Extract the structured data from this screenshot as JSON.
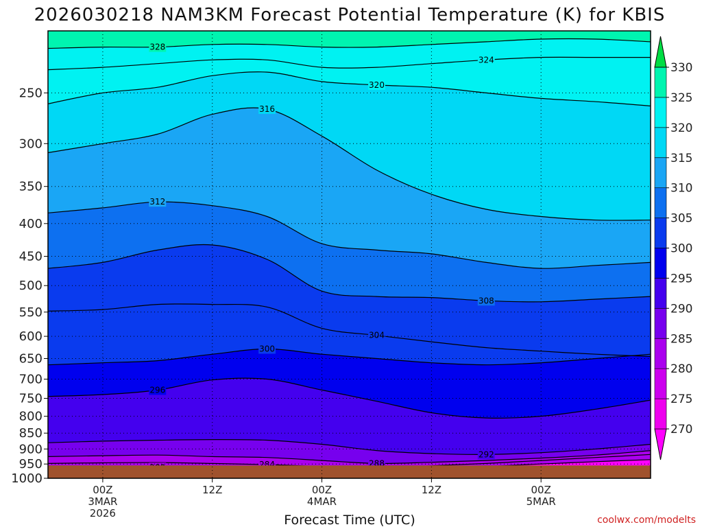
{
  "chart_data": {
    "type": "contour",
    "title": "2026030218 NAM3KM Forecast Potential Temperature (K) for KBIS",
    "xlabel": "Forecast Time (UTC)",
    "ylabel": "",
    "x_unit": "forecast hour",
    "xlim": [
      -6,
      60
    ],
    "y_unit": "hPa",
    "ylim": [
      1000,
      200
    ],
    "y_ticks": [
      250,
      300,
      350,
      400,
      450,
      500,
      550,
      600,
      650,
      700,
      750,
      800,
      850,
      900,
      950,
      1000
    ],
    "y_tick_labels": [
      "250",
      "300",
      "350",
      "400",
      "450",
      "500",
      "550",
      "600",
      "650",
      "700",
      "750",
      "800",
      "850",
      "900",
      "950",
      "1000"
    ],
    "x_ticks": [
      {
        "hour": 0,
        "label": "00Z",
        "line2": "3MAR",
        "line3": "2026"
      },
      {
        "hour": 12,
        "label": "12Z",
        "line2": "",
        "line3": ""
      },
      {
        "hour": 24,
        "label": "00Z",
        "line2": "4MAR",
        "line3": ""
      },
      {
        "hour": 36,
        "label": "12Z",
        "line2": "",
        "line3": ""
      },
      {
        "hour": 48,
        "label": "00Z",
        "line2": "5MAR",
        "line3": ""
      }
    ],
    "colorbar": {
      "levels": [
        265,
        270,
        275,
        280,
        285,
        290,
        295,
        300,
        305,
        310,
        315,
        320,
        325,
        330,
        335
      ],
      "labels": [
        "270",
        "275",
        "280",
        "285",
        "290",
        "295",
        "300",
        "305",
        "310",
        "315",
        "320",
        "325",
        "330"
      ],
      "colors": [
        "#ff00ff",
        "#ee00ee",
        "#cc00ee",
        "#aa00ee",
        "#7700ee",
        "#4400ee",
        "#0000ee",
        "#0a3bee",
        "#0d70f0",
        "#1aa6f5",
        "#00d8f5",
        "#00f2f2",
        "#00f5b0",
        "#00ee55",
        "#00dd44"
      ]
    },
    "contours": [
      {
        "level": 280,
        "label": "280",
        "points": [
          [
            -6,
            960
          ],
          [
            0,
            962
          ],
          [
            6,
            962
          ],
          [
            12,
            960
          ],
          [
            18,
            962
          ],
          [
            24,
            962
          ],
          [
            30,
            963
          ],
          [
            36,
            961
          ],
          [
            42,
            958
          ],
          [
            48,
            950
          ],
          [
            54,
            942
          ],
          [
            60,
            935
          ]
        ]
      },
      {
        "level": 284,
        "label": "284",
        "points": [
          [
            -6,
            948
          ],
          [
            0,
            946
          ],
          [
            6,
            945
          ],
          [
            12,
            948
          ],
          [
            18,
            952
          ],
          [
            24,
            958
          ],
          [
            30,
            960
          ],
          [
            36,
            956
          ],
          [
            42,
            948
          ],
          [
            48,
            938
          ],
          [
            54,
            928
          ],
          [
            60,
            918
          ]
        ]
      },
      {
        "level": 288,
        "label": "288",
        "points": [
          [
            -6,
            925
          ],
          [
            0,
            922
          ],
          [
            6,
            920
          ],
          [
            12,
            925
          ],
          [
            18,
            928
          ],
          [
            24,
            938
          ],
          [
            30,
            948
          ],
          [
            36,
            944
          ],
          [
            42,
            938
          ],
          [
            48,
            930
          ],
          [
            54,
            920
          ],
          [
            60,
            905
          ]
        ]
      },
      {
        "level": 292,
        "label": "292",
        "points": [
          [
            -6,
            880
          ],
          [
            0,
            875
          ],
          [
            6,
            872
          ],
          [
            12,
            870
          ],
          [
            18,
            872
          ],
          [
            24,
            885
          ],
          [
            30,
            905
          ],
          [
            36,
            915
          ],
          [
            42,
            918
          ],
          [
            48,
            912
          ],
          [
            54,
            900
          ],
          [
            60,
            885
          ]
        ]
      },
      {
        "level": 296,
        "label": "296",
        "points": [
          [
            -6,
            745
          ],
          [
            0,
            740
          ],
          [
            6,
            728
          ],
          [
            12,
            702
          ],
          [
            18,
            700
          ],
          [
            24,
            728
          ],
          [
            30,
            758
          ],
          [
            36,
            790
          ],
          [
            42,
            805
          ],
          [
            48,
            800
          ],
          [
            54,
            780
          ],
          [
            60,
            755
          ]
        ]
      },
      {
        "level": 300,
        "label": "300",
        "points": [
          [
            -6,
            665
          ],
          [
            0,
            660
          ],
          [
            6,
            655
          ],
          [
            12,
            640
          ],
          [
            18,
            628
          ],
          [
            24,
            640
          ],
          [
            30,
            650
          ],
          [
            36,
            660
          ],
          [
            42,
            665
          ],
          [
            48,
            660
          ],
          [
            54,
            650
          ],
          [
            60,
            640
          ]
        ]
      },
      {
        "level": 304,
        "label": "304",
        "points": [
          [
            -6,
            548
          ],
          [
            0,
            545
          ],
          [
            6,
            535
          ],
          [
            12,
            535
          ],
          [
            18,
            540
          ],
          [
            24,
            583
          ],
          [
            30,
            598
          ],
          [
            36,
            612
          ],
          [
            42,
            625
          ],
          [
            48,
            633
          ],
          [
            54,
            640
          ],
          [
            60,
            645
          ]
        ]
      },
      {
        "level": 308,
        "label": "308",
        "points": [
          [
            -6,
            470
          ],
          [
            0,
            460
          ],
          [
            6,
            440
          ],
          [
            12,
            432
          ],
          [
            18,
            455
          ],
          [
            24,
            510
          ],
          [
            30,
            520
          ],
          [
            36,
            522
          ],
          [
            42,
            528
          ],
          [
            48,
            530
          ],
          [
            54,
            525
          ],
          [
            60,
            520
          ]
        ]
      },
      {
        "level": 312,
        "label": "312",
        "points": [
          [
            -6,
            385
          ],
          [
            0,
            378
          ],
          [
            6,
            370
          ],
          [
            12,
            375
          ],
          [
            18,
            390
          ],
          [
            24,
            430
          ],
          [
            30,
            440
          ],
          [
            36,
            446
          ],
          [
            42,
            460
          ],
          [
            48,
            470
          ],
          [
            54,
            465
          ],
          [
            60,
            460
          ]
        ]
      },
      {
        "level": 316,
        "label": "316",
        "points": [
          [
            -6,
            310
          ],
          [
            0,
            300
          ],
          [
            6,
            290
          ],
          [
            12,
            270
          ],
          [
            18,
            265
          ],
          [
            24,
            292
          ],
          [
            30,
            330
          ],
          [
            36,
            360
          ],
          [
            42,
            380
          ],
          [
            48,
            390
          ],
          [
            54,
            395
          ],
          [
            60,
            395
          ]
        ]
      },
      {
        "level": 320,
        "label": "320",
        "points": [
          [
            -6,
            260
          ],
          [
            0,
            250
          ],
          [
            6,
            245
          ],
          [
            12,
            235
          ],
          [
            18,
            232
          ],
          [
            24,
            240
          ],
          [
            30,
            243
          ],
          [
            36,
            245
          ],
          [
            42,
            250
          ],
          [
            48,
            255
          ],
          [
            54,
            258
          ],
          [
            60,
            262
          ]
        ]
      },
      {
        "level": 324,
        "label": "324",
        "points": [
          [
            -6,
            230
          ],
          [
            0,
            228
          ],
          [
            6,
            225
          ],
          [
            12,
            222
          ],
          [
            18,
            222
          ],
          [
            24,
            228
          ],
          [
            30,
            228
          ],
          [
            36,
            225
          ],
          [
            42,
            222
          ],
          [
            48,
            220
          ],
          [
            54,
            220
          ],
          [
            60,
            220
          ]
        ]
      },
      {
        "level": 328,
        "label": "328",
        "points": [
          [
            -6,
            213
          ],
          [
            0,
            212
          ],
          [
            6,
            212
          ],
          [
            12,
            210
          ],
          [
            18,
            210
          ],
          [
            24,
            212
          ],
          [
            30,
            212
          ],
          [
            36,
            210
          ],
          [
            42,
            208
          ],
          [
            48,
            206
          ],
          [
            54,
            206
          ],
          [
            60,
            208
          ]
        ]
      }
    ],
    "surface_color": "#a0522d"
  },
  "footer": {
    "credit": "coolwx.com/modelts"
  }
}
